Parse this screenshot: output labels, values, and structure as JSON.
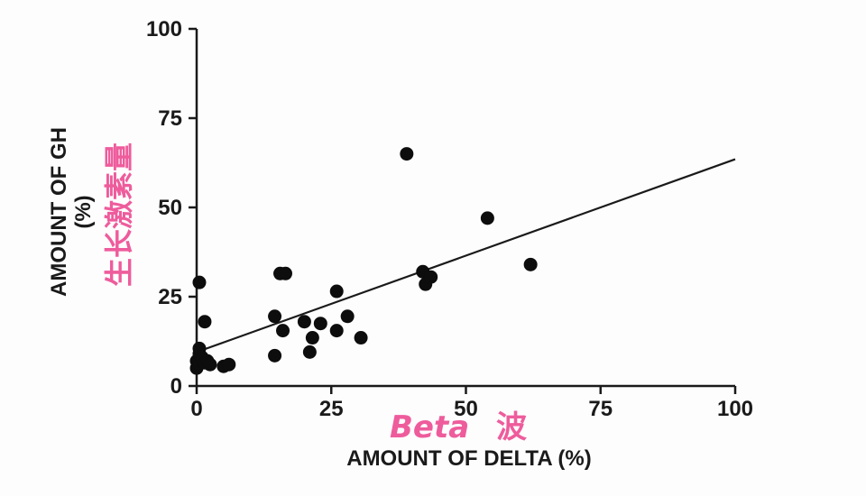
{
  "chart_data": {
    "type": "scatter",
    "title": "",
    "xlabel": "AMOUNT OF DELTA (%)",
    "ylabel_line1": "AMOUNT OF GH",
    "ylabel_line2": "(%)",
    "xlim": [
      0,
      100
    ],
    "ylim": [
      0,
      100
    ],
    "xticks": [
      "0",
      "25",
      "50",
      "75",
      "100"
    ],
    "yticks": [
      "0",
      "25",
      "50",
      "75",
      "100"
    ],
    "grid": false,
    "point_color": "#0d0d0d",
    "line_color": "#1a1a1a",
    "points": [
      {
        "x": 0,
        "y": 5
      },
      {
        "x": 0,
        "y": 7
      },
      {
        "x": 0.5,
        "y": 9
      },
      {
        "x": 0.5,
        "y": 10.5
      },
      {
        "x": 1,
        "y": 8
      },
      {
        "x": 1.5,
        "y": 6.5
      },
      {
        "x": 2,
        "y": 7
      },
      {
        "x": 2.5,
        "y": 6
      },
      {
        "x": 5,
        "y": 5.5
      },
      {
        "x": 6,
        "y": 6
      },
      {
        "x": 0.5,
        "y": 29
      },
      {
        "x": 1.5,
        "y": 18
      },
      {
        "x": 14.5,
        "y": 8.5
      },
      {
        "x": 14.5,
        "y": 19.5
      },
      {
        "x": 16,
        "y": 15.5
      },
      {
        "x": 15.5,
        "y": 31.5
      },
      {
        "x": 16.5,
        "y": 31.5
      },
      {
        "x": 20,
        "y": 18
      },
      {
        "x": 21,
        "y": 9.5
      },
      {
        "x": 21.5,
        "y": 13.5
      },
      {
        "x": 23,
        "y": 17.5
      },
      {
        "x": 26,
        "y": 26.5
      },
      {
        "x": 26,
        "y": 15.5
      },
      {
        "x": 28,
        "y": 19.5
      },
      {
        "x": 30.5,
        "y": 13.5
      },
      {
        "x": 39,
        "y": 65
      },
      {
        "x": 42,
        "y": 32
      },
      {
        "x": 42.5,
        "y": 28.5
      },
      {
        "x": 43.5,
        "y": 30.5
      },
      {
        "x": 54,
        "y": 47
      },
      {
        "x": 62,
        "y": 34
      }
    ],
    "regression_line": [
      {
        "x": 0,
        "y": 9.5
      },
      {
        "x": 100,
        "y": 63.5
      }
    ]
  },
  "annotations": {
    "y_label_zh": "生长激素量",
    "x_label_beta": "Beta",
    "x_label_zh": "波",
    "color": "#ee5c9c"
  }
}
